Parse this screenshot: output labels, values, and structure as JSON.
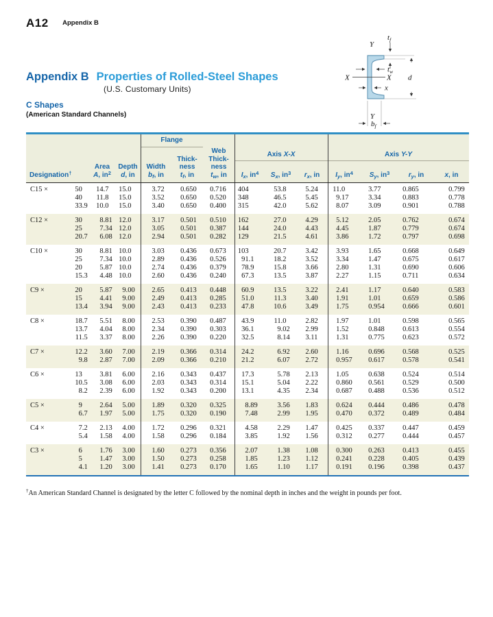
{
  "running_head": {
    "page_number": "A12",
    "section": "Appendix B"
  },
  "title": {
    "part1": "Appendix B",
    "part2": "Properties of Rolled-Steel Shapes",
    "part3": "(U.S. Customary Units)",
    "sub1": "C Shapes",
    "sub2": "(American Standard Channels)"
  },
  "colors": {
    "title_blue": "#1565a9",
    "light_blue": "#2b9cd8",
    "table_border_blue": "#2e8ec4",
    "header_bg": "#edeedd",
    "band_beige": "#f2f1df",
    "channel_fill": "#b8d8e9"
  },
  "diagram": {
    "top_axis": "Y",
    "bottom_axis": "Y",
    "left_axis": "X",
    "right_axis": "X",
    "depth": "d",
    "centroid": "x",
    "tf": {
      "m": "t",
      "s": "f"
    },
    "tw": {
      "m": "t",
      "s": "w"
    },
    "bf": {
      "m": "b",
      "s": "f"
    }
  },
  "table": {
    "group_headers": {
      "flange": "Flange",
      "axis_x": {
        "text": "Axis",
        "ital": "X-X"
      },
      "axis_y": {
        "text": "Axis",
        "ital": "Y-Y"
      }
    },
    "columns": [
      {
        "id": "designation",
        "title": "Designation",
        "title_sup": "†"
      },
      {
        "id": "area",
        "label_lines": [
          "Area"
        ],
        "unit": {
          "v": "A",
          "sub": "",
          "rest": ", in",
          "sup": "2"
        }
      },
      {
        "id": "depth",
        "label_lines": [
          "Depth"
        ],
        "unit": {
          "v": "d",
          "sub": "",
          "rest": ", in",
          "sup": ""
        }
      },
      {
        "id": "flange-width",
        "label_lines": [
          "Width"
        ],
        "unit": {
          "v": "b",
          "sub": "f",
          "rest": ", in",
          "sup": ""
        }
      },
      {
        "id": "flange-thickness",
        "label_lines": [
          "Thick-",
          "ness"
        ],
        "unit": {
          "v": "t",
          "sub": "f",
          "rest": ", in",
          "sup": ""
        }
      },
      {
        "id": "web-thickness",
        "label_lines": [
          "Web",
          "Thick-",
          "ness"
        ],
        "unit": {
          "v": "t",
          "sub": "w",
          "rest": ", in",
          "sup": ""
        }
      },
      {
        "id": "ix",
        "label_lines": [],
        "unit": {
          "v": "I",
          "sub": "x",
          "rest": ", in",
          "sup": "4"
        }
      },
      {
        "id": "sx",
        "label_lines": [],
        "unit": {
          "v": "S",
          "sub": "x",
          "rest": ", in",
          "sup": "3"
        }
      },
      {
        "id": "rx",
        "label_lines": [],
        "unit": {
          "v": "r",
          "sub": "x",
          "rest": ", in",
          "sup": ""
        }
      },
      {
        "id": "iy",
        "label_lines": [],
        "unit": {
          "v": "I",
          "sub": "y",
          "rest": ", in",
          "sup": "4"
        }
      },
      {
        "id": "sy",
        "label_lines": [],
        "unit": {
          "v": "S",
          "sub": "y",
          "rest": ", in",
          "sup": "3"
        }
      },
      {
        "id": "ry",
        "label_lines": [],
        "unit": {
          "v": "r",
          "sub": "y",
          "rest": ", in",
          "sup": ""
        }
      },
      {
        "id": "xbar",
        "label_lines": [],
        "unit": {
          "v": "x",
          "sub": "",
          "rest": ", in",
          "sup": ""
        }
      }
    ],
    "groups": [
      {
        "prefix": "C15 ×",
        "rows": [
          {
            "w": "50",
            "values": [
              "14.7",
              "15.0",
              "3.72",
              "0.650",
              "0.716",
              "404",
              "53.8",
              "5.24",
              "11.0",
              "3.77",
              "0.865",
              "0.799"
            ]
          },
          {
            "w": "40",
            "values": [
              "11.8",
              "15.0",
              "3.52",
              "0.650",
              "0.520",
              "348",
              "46.5",
              "5.45",
              "9.17",
              "3.34",
              "0.883",
              "0.778"
            ]
          },
          {
            "w": "33.9",
            "values": [
              "10.0",
              "15.0",
              "3.40",
              "0.650",
              "0.400",
              "315",
              "42.0",
              "5.62",
              "8.07",
              "3.09",
              "0.901",
              "0.788"
            ]
          }
        ]
      },
      {
        "prefix": "C12 ×",
        "rows": [
          {
            "w": "30",
            "values": [
              "8.81",
              "12.0",
              "3.17",
              "0.501",
              "0.510",
              "162",
              "27.0",
              "4.29",
              "5.12",
              "2.05",
              "0.762",
              "0.674"
            ]
          },
          {
            "w": "25",
            "values": [
              "7.34",
              "12.0",
              "3.05",
              "0.501",
              "0.387",
              "144",
              "24.0",
              "4.43",
              "4.45",
              "1.87",
              "0.779",
              "0.674"
            ]
          },
          {
            "w": "20.7",
            "values": [
              "6.08",
              "12.0",
              "2.94",
              "0.501",
              "0.282",
              "129",
              "21.5",
              "4.61",
              "3.86",
              "1.72",
              "0.797",
              "0.698"
            ]
          }
        ]
      },
      {
        "prefix": "C10 ×",
        "rows": [
          {
            "w": "30",
            "values": [
              "8.81",
              "10.0",
              "3.03",
              "0.436",
              "0.673",
              "103",
              "20.7",
              "3.42",
              "3.93",
              "1.65",
              "0.668",
              "0.649"
            ]
          },
          {
            "w": "25",
            "values": [
              "7.34",
              "10.0",
              "2.89",
              "0.436",
              "0.526",
              "91.1",
              "18.2",
              "3.52",
              "3.34",
              "1.47",
              "0.675",
              "0.617"
            ]
          },
          {
            "w": "20",
            "values": [
              "5.87",
              "10.0",
              "2.74",
              "0.436",
              "0.379",
              "78.9",
              "15.8",
              "3.66",
              "2.80",
              "1.31",
              "0.690",
              "0.606"
            ]
          },
          {
            "w": "15.3",
            "values": [
              "4.48",
              "10.0",
              "2.60",
              "0.436",
              "0.240",
              "67.3",
              "13.5",
              "3.87",
              "2.27",
              "1.15",
              "0.711",
              "0.634"
            ]
          }
        ]
      },
      {
        "prefix": "C9 ×",
        "rows": [
          {
            "w": "20",
            "values": [
              "5.87",
              "9.00",
              "2.65",
              "0.413",
              "0.448",
              "60.9",
              "13.5",
              "3.22",
              "2.41",
              "1.17",
              "0.640",
              "0.583"
            ]
          },
          {
            "w": "15",
            "values": [
              "4.41",
              "9.00",
              "2.49",
              "0.413",
              "0.285",
              "51.0",
              "11.3",
              "3.40",
              "1.91",
              "1.01",
              "0.659",
              "0.586"
            ]
          },
          {
            "w": "13.4",
            "values": [
              "3.94",
              "9.00",
              "2.43",
              "0.413",
              "0.233",
              "47.8",
              "10.6",
              "3.49",
              "1.75",
              "0.954",
              "0.666",
              "0.601"
            ]
          }
        ]
      },
      {
        "prefix": "C8 ×",
        "rows": [
          {
            "w": "18.7",
            "values": [
              "5.51",
              "8.00",
              "2.53",
              "0.390",
              "0.487",
              "43.9",
              "11.0",
              "2.82",
              "1.97",
              "1.01",
              "0.598",
              "0.565"
            ]
          },
          {
            "w": "13.7",
            "values": [
              "4.04",
              "8.00",
              "2.34",
              "0.390",
              "0.303",
              "36.1",
              "9.02",
              "2.99",
              "1.52",
              "0.848",
              "0.613",
              "0.554"
            ]
          },
          {
            "w": "11.5",
            "values": [
              "3.37",
              "8.00",
              "2.26",
              "0.390",
              "0.220",
              "32.5",
              "8.14",
              "3.11",
              "1.31",
              "0.775",
              "0.623",
              "0.572"
            ]
          }
        ]
      },
      {
        "prefix": "C7 ×",
        "rows": [
          {
            "w": "12.2",
            "values": [
              "3.60",
              "7.00",
              "2.19",
              "0.366",
              "0.314",
              "24.2",
              "6.92",
              "2.60",
              "1.16",
              "0.696",
              "0.568",
              "0.525"
            ]
          },
          {
            "w": "9.8",
            "values": [
              "2.87",
              "7.00",
              "2.09",
              "0.366",
              "0.210",
              "21.2",
              "6.07",
              "2.72",
              "0.957",
              "0.617",
              "0.578",
              "0.541"
            ]
          }
        ]
      },
      {
        "prefix": "C6 ×",
        "rows": [
          {
            "w": "13",
            "values": [
              "3.81",
              "6.00",
              "2.16",
              "0.343",
              "0.437",
              "17.3",
              "5.78",
              "2.13",
              "1.05",
              "0.638",
              "0.524",
              "0.514"
            ]
          },
          {
            "w": "10.5",
            "values": [
              "3.08",
              "6.00",
              "2.03",
              "0.343",
              "0.314",
              "15.1",
              "5.04",
              "2.22",
              "0.860",
              "0.561",
              "0.529",
              "0.500"
            ]
          },
          {
            "w": "8.2",
            "values": [
              "2.39",
              "6.00",
              "1.92",
              "0.343",
              "0.200",
              "13.1",
              "4.35",
              "2.34",
              "0.687",
              "0.488",
              "0.536",
              "0.512"
            ]
          }
        ]
      },
      {
        "prefix": "C5 ×",
        "rows": [
          {
            "w": "9",
            "values": [
              "2.64",
              "5.00",
              "1.89",
              "0.320",
              "0.325",
              "8.89",
              "3.56",
              "1.83",
              "0.624",
              "0.444",
              "0.486",
              "0.478"
            ]
          },
          {
            "w": "6.7",
            "values": [
              "1.97",
              "5.00",
              "1.75",
              "0.320",
              "0.190",
              "7.48",
              "2.99",
              "1.95",
              "0.470",
              "0.372",
              "0.489",
              "0.484"
            ]
          }
        ]
      },
      {
        "prefix": "C4 ×",
        "rows": [
          {
            "w": "7.2",
            "values": [
              "2.13",
              "4.00",
              "1.72",
              "0.296",
              "0.321",
              "4.58",
              "2.29",
              "1.47",
              "0.425",
              "0.337",
              "0.447",
              "0.459"
            ]
          },
          {
            "w": "5.4",
            "values": [
              "1.58",
              "4.00",
              "1.58",
              "0.296",
              "0.184",
              "3.85",
              "1.92",
              "1.56",
              "0.312",
              "0.277",
              "0.444",
              "0.457"
            ]
          }
        ]
      },
      {
        "prefix": "C3 ×",
        "rows": [
          {
            "w": "6",
            "values": [
              "1.76",
              "3.00",
              "1.60",
              "0.273",
              "0.356",
              "2.07",
              "1.38",
              "1.08",
              "0.300",
              "0.263",
              "0.413",
              "0.455"
            ]
          },
          {
            "w": "5",
            "values": [
              "1.47",
              "3.00",
              "1.50",
              "0.273",
              "0.258",
              "1.85",
              "1.23",
              "1.12",
              "0.241",
              "0.228",
              "0.405",
              "0.439"
            ]
          },
          {
            "w": "4.1",
            "values": [
              "1.20",
              "3.00",
              "1.41",
              "0.273",
              "0.170",
              "1.65",
              "1.10",
              "1.17",
              "0.191",
              "0.196",
              "0.398",
              "0.437"
            ]
          }
        ]
      }
    ]
  },
  "footnote": {
    "dagger": "†",
    "text": "An American Standard Channel is designated by the letter C followed by the nominal depth in inches and the weight in pounds per foot."
  }
}
